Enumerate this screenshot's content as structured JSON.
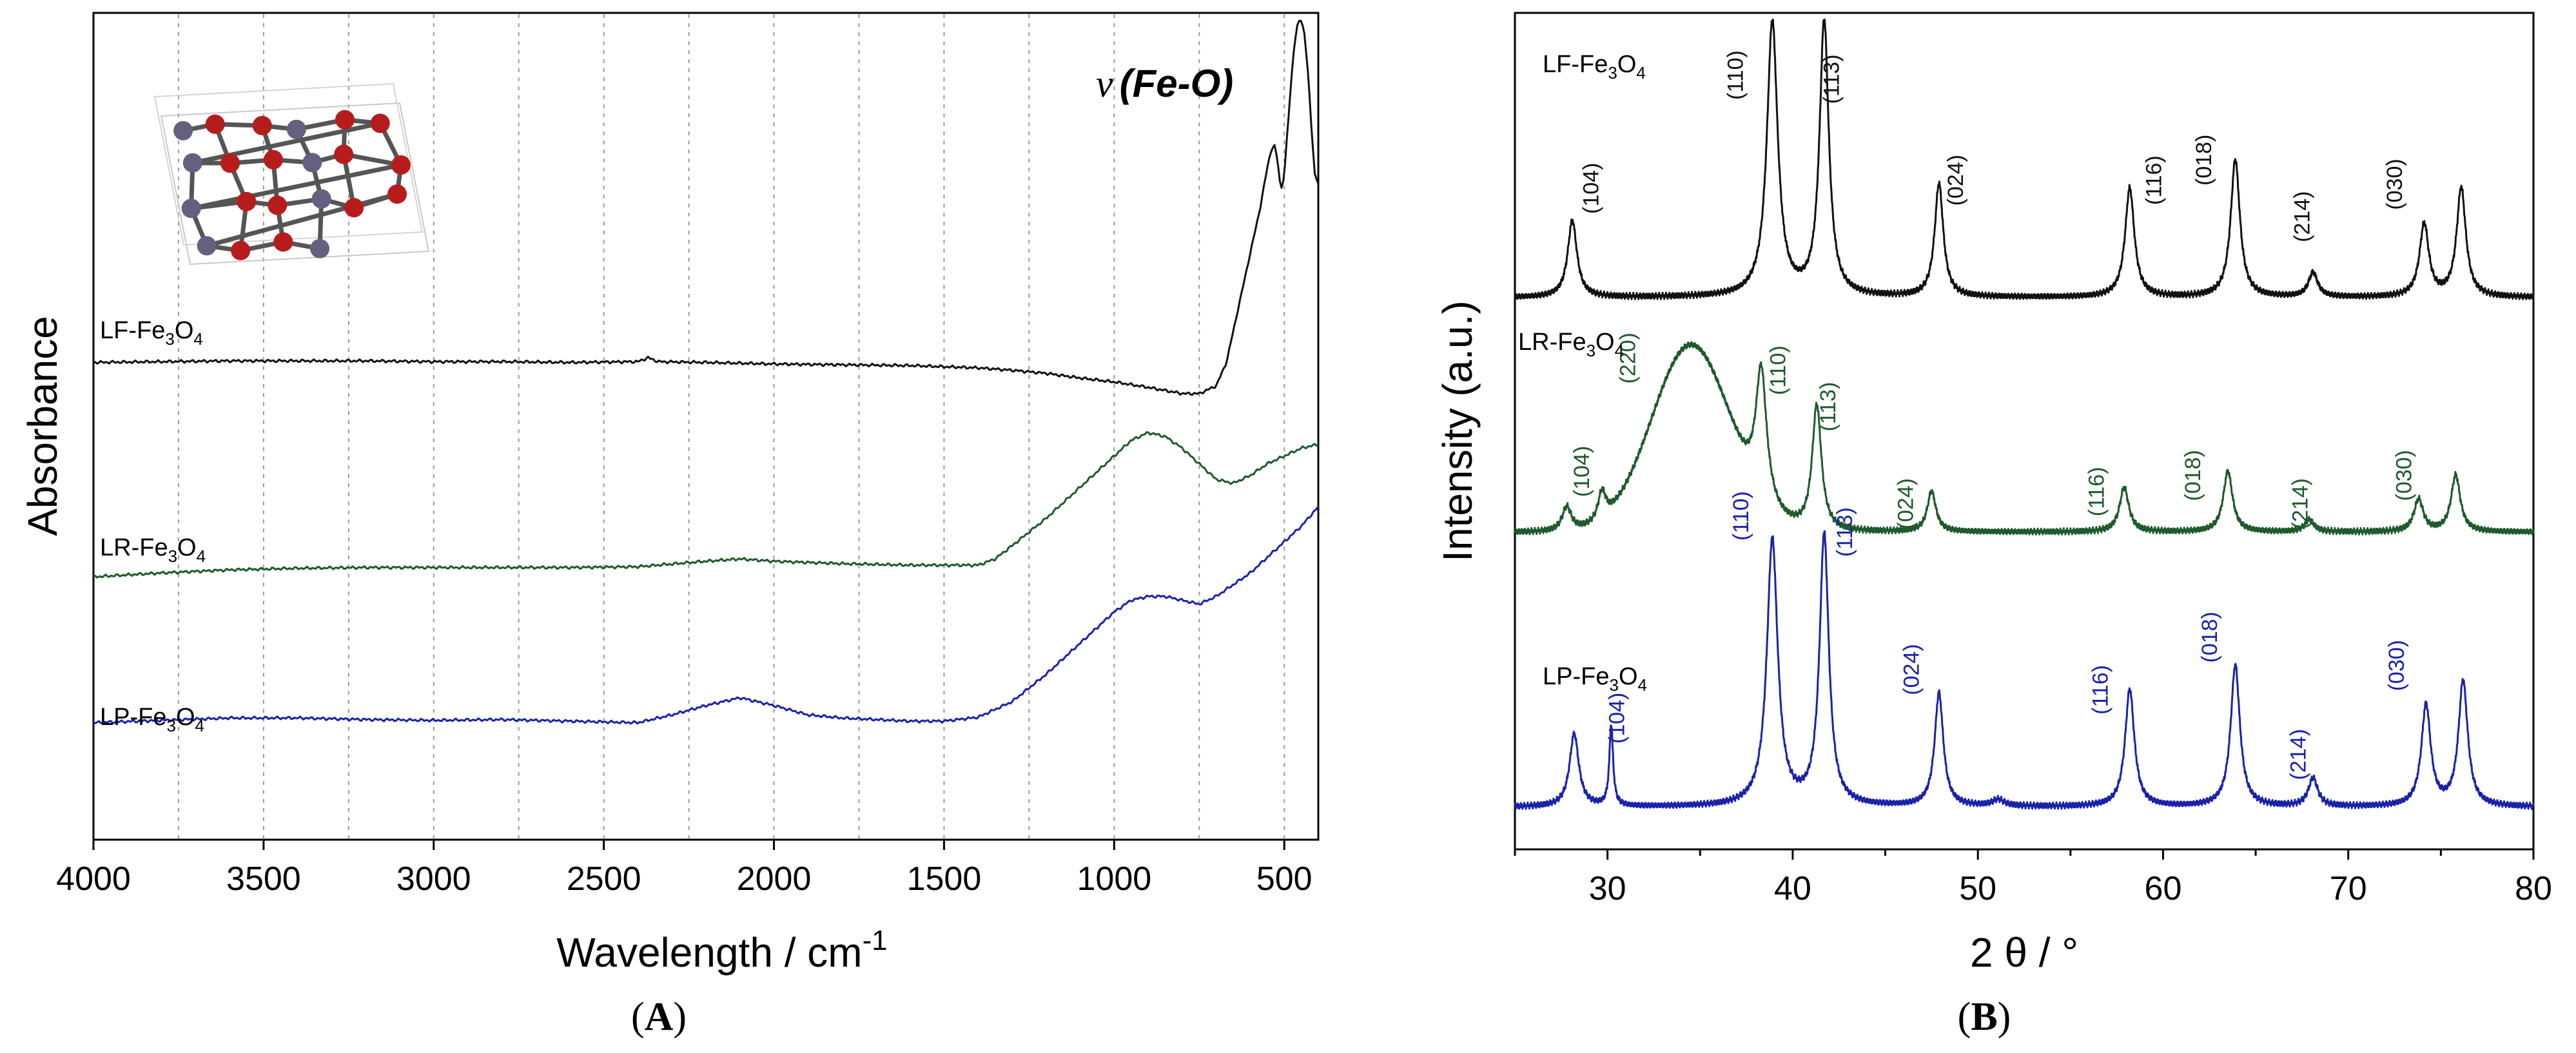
{
  "panel_labels": {
    "a": "A",
    "b": "B"
  },
  "colors": {
    "lf": "#111111",
    "lr": "#1e5a2c",
    "lp": "#1a22aa",
    "atom_fe": "#64607f",
    "atom_o": "#b71c1c"
  },
  "annotation_bond": {
    "nu": "ν",
    "fe_o": "(Fe-O)"
  },
  "chart_data": [
    {
      "type": "line",
      "title": "",
      "xlabel": "Wavelength / cm",
      "xlabel_sup": "-1",
      "ylabel": "Absorbance",
      "xlim": [
        4000,
        400
      ],
      "ylim": [
        0,
        1
      ],
      "x_ticks": [
        "4000",
        "3500",
        "3000",
        "2500",
        "2000",
        "1500",
        "1000",
        "500"
      ],
      "x_tick_values": [
        4000,
        3500,
        3000,
        2500,
        2000,
        1500,
        1000,
        500
      ],
      "minor_grid_x": [
        3750,
        3500,
        3250,
        3000,
        2750,
        2500,
        2250,
        2000,
        1750,
        1500,
        1250,
        1000,
        750,
        500
      ],
      "series": [
        {
          "name": "LF-Fe3O4",
          "label_parts": [
            "LF-Fe",
            "3",
            "O",
            "4"
          ],
          "color_key": "lf",
          "x": [
            4000,
            3800,
            3600,
            3400,
            3200,
            3000,
            2800,
            2600,
            2400,
            2370,
            2340,
            2200,
            2000,
            1800,
            1600,
            1400,
            1300,
            1200,
            1100,
            1000,
            900,
            800,
            750,
            700,
            670,
            640,
            600,
            570,
            550,
            540,
            530,
            520,
            510,
            500,
            490,
            480,
            470,
            460,
            450,
            440,
            430,
            420,
            410,
            400
          ],
          "y": [
            0.56,
            0.561,
            0.562,
            0.562,
            0.562,
            0.561,
            0.561,
            0.56,
            0.561,
            0.566,
            0.561,
            0.56,
            0.558,
            0.557,
            0.556,
            0.553,
            0.55,
            0.546,
            0.54,
            0.535,
            0.528,
            0.52,
            0.52,
            0.53,
            0.56,
            0.62,
            0.7,
            0.76,
            0.81,
            0.83,
            0.84,
            0.82,
            0.78,
            0.8,
            0.86,
            0.92,
            0.97,
            0.995,
            1.0,
            0.98,
            0.93,
            0.86,
            0.8,
            0.79
          ]
        },
        {
          "name": "LR-Fe3O4",
          "label_parts": [
            "LR-Fe",
            "3",
            "O",
            "4"
          ],
          "color_key": "lr",
          "x": [
            4000,
            3800,
            3600,
            3400,
            3200,
            3000,
            2800,
            2600,
            2400,
            2200,
            2100,
            2000,
            1800,
            1600,
            1500,
            1400,
            1350,
            1300,
            1200,
            1100,
            1000,
            950,
            900,
            850,
            800,
            750,
            700,
            650,
            600,
            550,
            500,
            450,
            400
          ],
          "y": [
            0.285,
            0.29,
            0.294,
            0.296,
            0.297,
            0.297,
            0.297,
            0.297,
            0.298,
            0.305,
            0.308,
            0.305,
            0.302,
            0.3,
            0.3,
            0.3,
            0.308,
            0.325,
            0.36,
            0.4,
            0.44,
            0.46,
            0.47,
            0.465,
            0.45,
            0.43,
            0.41,
            0.405,
            0.415,
            0.43,
            0.44,
            0.45,
            0.455
          ]
        },
        {
          "name": "LP-Fe3O4",
          "label_parts": [
            "LP-Fe",
            "3",
            "O",
            "4"
          ],
          "color_key": "lp",
          "x": [
            4000,
            3800,
            3600,
            3400,
            3200,
            3000,
            2800,
            2600,
            2400,
            2300,
            2200,
            2100,
            2000,
            1900,
            1800,
            1700,
            1600,
            1500,
            1400,
            1300,
            1200,
            1100,
            1000,
            950,
            900,
            850,
            800,
            750,
            700,
            650,
            600,
            550,
            500,
            450,
            400
          ],
          "y": [
            0.098,
            0.101,
            0.104,
            0.104,
            0.102,
            0.101,
            0.102,
            0.1,
            0.098,
            0.108,
            0.12,
            0.13,
            0.12,
            0.108,
            0.104,
            0.102,
            0.1,
            0.1,
            0.105,
            0.125,
            0.16,
            0.2,
            0.24,
            0.255,
            0.26,
            0.26,
            0.255,
            0.25,
            0.26,
            0.275,
            0.29,
            0.31,
            0.33,
            0.35,
            0.375
          ]
        }
      ]
    },
    {
      "type": "line",
      "title": "",
      "xlabel": "2 θ / °",
      "ylabel": "Intensity (a.u.)",
      "xlim": [
        25,
        80
      ],
      "ylim": [
        0,
        1
      ],
      "x_ticks": [
        "30",
        "40",
        "50",
        "60",
        "70",
        "80"
      ],
      "x_tick_values": [
        30,
        40,
        50,
        60,
        70,
        80
      ],
      "series": [
        {
          "name": "LF-Fe3O4",
          "label_parts": [
            "LF-Fe",
            "3",
            "O",
            "4"
          ],
          "color_key": "lf",
          "baseline": 0.66,
          "broad": [],
          "peaks": [
            [
              28.1,
              0.095,
              0.3
            ],
            [
              38.9,
              0.34,
              0.35
            ],
            [
              41.7,
              0.34,
              0.3
            ],
            [
              47.9,
              0.14,
              0.28
            ],
            [
              58.2,
              0.135,
              0.3
            ],
            [
              63.9,
              0.17,
              0.3
            ],
            [
              68.1,
              0.03,
              0.3
            ],
            [
              74.1,
              0.09,
              0.3
            ],
            [
              76.1,
              0.135,
              0.3
            ]
          ],
          "peak_labels": [
            {
              "text": "(104)",
              "x": 29.5,
              "y": 0.795
            },
            {
              "text": "(110)",
              "x": 37.3,
              "y": 0.935
            },
            {
              "text": "(113)",
              "x": 42.5,
              "y": 0.93
            },
            {
              "text": "(024)",
              "x": 49.2,
              "y": 0.805
            },
            {
              "text": "(116)",
              "x": 59.9,
              "y": 0.805
            },
            {
              "text": "(018)",
              "x": 62.6,
              "y": 0.83
            },
            {
              "text": "(214)",
              "x": 67.9,
              "y": 0.76
            },
            {
              "text": "(030)",
              "x": 72.9,
              "y": 0.8
            }
          ]
        },
        {
          "name": "LR-Fe3O4",
          "label_parts": [
            "LR-Fe",
            "3",
            "O",
            "4"
          ],
          "color_key": "lr",
          "baseline": 0.37,
          "broad": [
            [
              34.5,
              0.23,
              3.0
            ]
          ],
          "peaks": [
            [
              27.8,
              0.03,
              0.3
            ],
            [
              29.7,
              0.035,
              0.25
            ],
            [
              38.3,
              0.16,
              0.35
            ],
            [
              41.3,
              0.155,
              0.3
            ],
            [
              47.5,
              0.05,
              0.28
            ],
            [
              57.9,
              0.055,
              0.3
            ],
            [
              63.5,
              0.075,
              0.3
            ],
            [
              67.9,
              0.015,
              0.3
            ],
            [
              73.8,
              0.04,
              0.3
            ],
            [
              75.8,
              0.07,
              0.3
            ]
          ],
          "peak_labels": [
            {
              "text": "(104)",
              "x": 29.0,
              "y": 0.445
            },
            {
              "text": "(220)",
              "x": 31.5,
              "y": 0.585
            },
            {
              "text": "(110)",
              "x": 39.6,
              "y": 0.57
            },
            {
              "text": "(113)",
              "x": 42.3,
              "y": 0.525
            },
            {
              "text": "(024)",
              "x": 46.5,
              "y": 0.405
            },
            {
              "text": "(116)",
              "x": 56.8,
              "y": 0.42
            },
            {
              "text": "(018)",
              "x": 62.0,
              "y": 0.44
            },
            {
              "text": "(214)",
              "x": 67.8,
              "y": 0.405
            },
            {
              "text": "(030)",
              "x": 73.4,
              "y": 0.44
            }
          ]
        },
        {
          "name": "LP-Fe3O4",
          "label_parts": [
            "LP-Fe",
            "3",
            "O",
            "4"
          ],
          "color_key": "lp",
          "baseline": 0.03,
          "broad": [],
          "peaks": [
            [
              28.2,
              0.09,
              0.3
            ],
            [
              30.2,
              0.1,
              0.12
            ],
            [
              38.9,
              0.33,
              0.35
            ],
            [
              41.7,
              0.335,
              0.3
            ],
            [
              47.9,
              0.14,
              0.28
            ],
            [
              51.1,
              0.008,
              0.4
            ],
            [
              58.2,
              0.145,
              0.3
            ],
            [
              63.9,
              0.175,
              0.3
            ],
            [
              68.1,
              0.035,
              0.3
            ],
            [
              74.2,
              0.125,
              0.3
            ],
            [
              76.2,
              0.155,
              0.3
            ]
          ],
          "peak_labels": [
            {
              "text": "(104)",
              "x": 30.9,
              "y": 0.14
            },
            {
              "text": "(110)",
              "x": 37.6,
              "y": 0.39
            },
            {
              "text": "(113)",
              "x": 43.2,
              "y": 0.37
            },
            {
              "text": "(024)",
              "x": 46.8,
              "y": 0.2
            },
            {
              "text": "(116)",
              "x": 57.0,
              "y": 0.175
            },
            {
              "text": "(018)",
              "x": 62.9,
              "y": 0.24
            },
            {
              "text": "(214)",
              "x": 67.7,
              "y": 0.095
            },
            {
              "text": "(030)",
              "x": 73.0,
              "y": 0.205
            }
          ]
        }
      ]
    }
  ]
}
